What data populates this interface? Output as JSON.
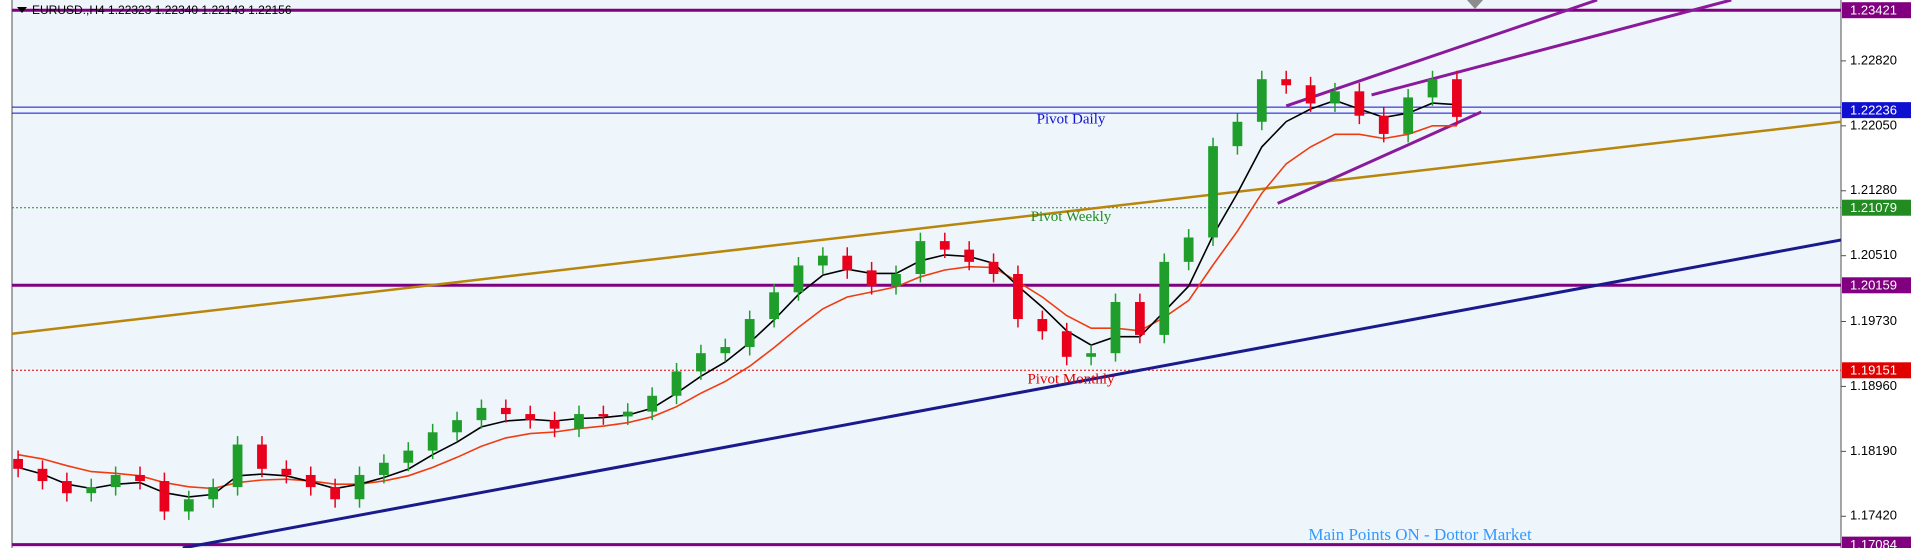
{
  "chart_data": {
    "type": "candlestick",
    "title": "EURUSD.,H4  1.22323 1.22340 1.22143 1.22156",
    "xlim": [
      -0.25,
      74.75
    ],
    "ylim": [
      1.17044,
      1.23542
    ],
    "yticks": [
      {
        "value": 1.2282,
        "label": "1.22820"
      },
      {
        "value": 1.2205,
        "label": "1.22050"
      },
      {
        "value": 1.2128,
        "label": "1.21280"
      },
      {
        "value": 1.2051,
        "label": "1.20510"
      },
      {
        "value": 1.1973,
        "label": "1.19730"
      },
      {
        "value": 1.1896,
        "label": "1.18960"
      },
      {
        "value": 1.1819,
        "label": "1.18190"
      },
      {
        "value": 1.1742,
        "label": "1.17420"
      }
    ],
    "up_color": "#1f9e2c",
    "down_color": "#e8001c",
    "ohlc": {
      "open": [
        1.181,
        1.17983,
        1.17838,
        1.17694,
        1.17766,
        1.1791,
        1.17838,
        1.17477,
        1.17622,
        1.17766,
        1.18271,
        1.17983,
        1.1791,
        1.17766,
        1.17622,
        1.1791,
        1.18055,
        1.18199,
        1.18416,
        1.1856,
        1.18705,
        1.18632,
        1.1856,
        1.18459,
        1.18632,
        1.18604,
        1.18661,
        1.18849,
        1.19138,
        1.19354,
        1.19427,
        1.19759,
        1.20076,
        1.20394,
        1.2051,
        1.20336,
        1.20149,
        1.20293,
        1.20683,
        1.20582,
        1.20437,
        1.20293,
        1.19759,
        1.19614,
        1.19311,
        1.19354,
        1.19961,
        1.19571,
        1.20437,
        1.20726,
        1.21809,
        1.22098,
        1.22603,
        1.22531,
        1.22315,
        1.22459,
        1.2217,
        1.21954,
        1.22387,
        1.22603
      ],
      "high": [
        1.182,
        1.18083,
        1.17938,
        1.17866,
        1.1801,
        1.1801,
        1.17938,
        1.17722,
        1.17866,
        1.18371,
        1.18371,
        1.18083,
        1.1801,
        1.17866,
        1.1801,
        1.18155,
        1.18299,
        1.18516,
        1.1866,
        1.18805,
        1.18805,
        1.18732,
        1.1866,
        1.18732,
        1.18732,
        1.18761,
        1.18949,
        1.19238,
        1.19454,
        1.19527,
        1.19859,
        1.20176,
        1.20494,
        1.2061,
        1.2061,
        1.20436,
        1.20393,
        1.20783,
        1.20783,
        1.20682,
        1.20537,
        1.20393,
        1.19859,
        1.19714,
        1.19454,
        1.20061,
        1.20061,
        1.20537,
        1.20826,
        1.21909,
        1.22198,
        1.22703,
        1.22703,
        1.22631,
        1.22559,
        1.22559,
        1.2227,
        1.22487,
        1.22703,
        1.22703
      ],
      "low": [
        1.17883,
        1.17738,
        1.17594,
        1.17594,
        1.17666,
        1.17738,
        1.17377,
        1.17377,
        1.17522,
        1.17666,
        1.17883,
        1.1781,
        1.17666,
        1.17522,
        1.17522,
        1.1781,
        1.17955,
        1.18099,
        1.18316,
        1.1846,
        1.18532,
        1.1846,
        1.18359,
        1.18359,
        1.18504,
        1.18504,
        1.18561,
        1.18749,
        1.19038,
        1.19254,
        1.19327,
        1.19659,
        1.19976,
        1.20294,
        1.20236,
        1.20049,
        1.20049,
        1.20193,
        1.20482,
        1.20337,
        1.20193,
        1.19659,
        1.19514,
        1.19211,
        1.19211,
        1.19254,
        1.19471,
        1.19471,
        1.20337,
        1.20626,
        1.21709,
        1.21998,
        1.22431,
        1.22215,
        1.22215,
        1.2207,
        1.21854,
        1.21854,
        1.22287,
        1.22056
      ],
      "close": [
        1.17983,
        1.17838,
        1.17694,
        1.17766,
        1.1791,
        1.17838,
        1.17477,
        1.17622,
        1.17766,
        1.18271,
        1.17983,
        1.1791,
        1.17766,
        1.17622,
        1.1791,
        1.18055,
        1.18199,
        1.18416,
        1.1856,
        1.18705,
        1.18632,
        1.1856,
        1.18459,
        1.18632,
        1.18604,
        1.18661,
        1.18849,
        1.19138,
        1.19354,
        1.19427,
        1.19759,
        1.20076,
        1.20394,
        1.2051,
        1.20336,
        1.20149,
        1.20293,
        1.20683,
        1.20582,
        1.20437,
        1.20293,
        1.19759,
        1.19614,
        1.19311,
        1.19354,
        1.19961,
        1.19571,
        1.20437,
        1.20726,
        1.21809,
        1.22098,
        1.22603,
        1.22531,
        1.22315,
        1.22459,
        1.2217,
        1.21954,
        1.22387,
        1.22603,
        1.22156
      ]
    },
    "lines": [
      {
        "color": "#f03c10",
        "values": [
          1.1815,
          1.181,
          1.1802,
          1.1795,
          1.1793,
          1.179,
          1.1782,
          1.1777,
          1.1775,
          1.1782,
          1.1785,
          1.1786,
          1.1784,
          1.178,
          1.178,
          1.1784,
          1.179,
          1.18,
          1.1812,
          1.1825,
          1.1835,
          1.184,
          1.1842,
          1.1846,
          1.1849,
          1.1853,
          1.186,
          1.1872,
          1.1888,
          1.1902,
          1.192,
          1.1942,
          1.1966,
          1.1988,
          1.2002,
          1.2008,
          1.2014,
          1.2026,
          1.2034,
          1.2038,
          1.2037,
          1.202,
          1.2002,
          1.198,
          1.1965,
          1.1965,
          1.1962,
          1.1978,
          1.1998,
          1.204,
          1.208,
          1.2125,
          1.216,
          1.218,
          1.2195,
          1.2195,
          1.219,
          1.2195,
          1.2205,
          1.2205
        ]
      },
      {
        "color": "#000000",
        "values": [
          1.18,
          1.1792,
          1.178,
          1.1775,
          1.178,
          1.1782,
          1.177,
          1.1765,
          1.1768,
          1.179,
          1.1792,
          1.179,
          1.1783,
          1.1775,
          1.178,
          1.1788,
          1.1798,
          1.1815,
          1.183,
          1.1848,
          1.1855,
          1.1857,
          1.1855,
          1.1858,
          1.1859,
          1.1862,
          1.187,
          1.1888,
          1.1908,
          1.1925,
          1.1948,
          1.1975,
          1.2005,
          1.2028,
          1.2035,
          1.203,
          1.203,
          1.2045,
          1.2052,
          1.205,
          1.2042,
          1.2015,
          1.199,
          1.1962,
          1.1945,
          1.1955,
          1.1955,
          1.1985,
          1.2015,
          1.2075,
          1.2125,
          1.218,
          1.221,
          1.2225,
          1.2235,
          1.2225,
          1.2215,
          1.222,
          1.2232,
          1.223
        ]
      }
    ],
    "trendlines": [
      {
        "color": "#b8860b",
        "width": 2.5,
        "x": [
          -0.25,
          74.75
        ],
        "y": [
          1.19585,
          1.22098
        ]
      },
      {
        "color": "#1a1a8c",
        "width": 3,
        "x": [
          6.75,
          74.75
        ],
        "y": [
          1.17044,
          1.20697
        ]
      },
      {
        "color": "#8b1a9b",
        "width": 3,
        "x": [
          52,
          64.75
        ],
        "y": [
          1.22286,
          1.23542
        ]
      },
      {
        "color": "#8b1a9b",
        "width": 3,
        "x": [
          55.5,
          70.25
        ],
        "y": [
          1.22416,
          1.23542
        ]
      },
      {
        "color": "#8b1a9b",
        "width": 3,
        "x": [
          51.65,
          60
        ],
        "y": [
          1.2113,
          1.22214
        ]
      }
    ],
    "levels": [
      {
        "value": 1.23421,
        "color": "#800080",
        "style": "thick"
      },
      {
        "value": 1.22236,
        "color": "#1010d0",
        "style": "double",
        "text": "Pivot Daily"
      },
      {
        "value": 1.21079,
        "color": "#228b22",
        "style": "dotted",
        "text": "Pivot Weekly"
      },
      {
        "value": 1.20159,
        "color": "#800080",
        "style": "thick"
      },
      {
        "value": 1.19151,
        "color": "#e00000",
        "style": "dotted",
        "text": "Pivot Monthly"
      },
      {
        "value": 1.17084,
        "color": "#800080",
        "style": "thick"
      }
    ],
    "annotation": "Main Points ON - Dottor Market"
  }
}
